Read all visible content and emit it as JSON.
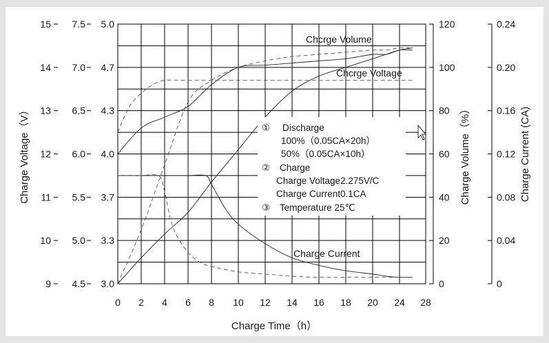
{
  "chart_data": {
    "type": "line",
    "xlabel": "Charge Time（h）",
    "x_ticks": [
      "0",
      "2",
      "4",
      "6",
      "8",
      "10",
      "12",
      "14",
      "16",
      "18",
      "20",
      "24",
      "28"
    ],
    "x_range_hours": [
      0,
      28
    ],
    "grid": true,
    "left_axes": [
      {
        "title": "Charge Voltage（V）",
        "ticks": [
          "15",
          "14",
          "13",
          "12",
          "11",
          "10",
          "9"
        ]
      },
      {
        "ticks": [
          "7.5",
          "7.0",
          "6.5",
          "6.0",
          "5.5",
          "5.0",
          "4.5"
        ]
      },
      {
        "ticks": [
          "5.0",
          "4.7",
          "4.3",
          "4.0",
          "3.7",
          "3.3",
          "3.0"
        ]
      }
    ],
    "right_axes": [
      {
        "title": "Charge Volume（%）",
        "ticks": [
          "120",
          "100",
          "80",
          "60",
          "40",
          "20",
          "0"
        ]
      },
      {
        "title": "Charge Current (CA)",
        "ticks": [
          "0.24",
          "0.20",
          "0.16",
          "0.12",
          "0.08",
          "0.04",
          "0"
        ]
      }
    ],
    "curve_labels": {
      "volume": "Chcrge Volume",
      "voltage": "Chcrge Voltage",
      "current": "Charge Current"
    },
    "legend": [
      {
        "marker": "①",
        "text": "Discharge"
      },
      {
        "marker": "",
        "text": "100%（0.05CA×20h）"
      },
      {
        "marker": "",
        "text": "50%（0.05CA×10h）"
      },
      {
        "marker": "②",
        "text": "Charge"
      },
      {
        "marker": "",
        "text": "Charge Voltage2.275V/C"
      },
      {
        "marker": "",
        "text": "Charge Current0.1CA"
      },
      {
        "marker": "③",
        "text": "Temperature 25℃"
      }
    ],
    "series": [
      {
        "curve": "voltage",
        "discharge": "100%",
        "style": "solid",
        "y_axis": "Charge Voltage (V)",
        "x": [
          0,
          2,
          4,
          6,
          8,
          10,
          12,
          14,
          16,
          18,
          20,
          22,
          24,
          26
        ],
        "y": [
          12.0,
          12.6,
          12.85,
          13.1,
          13.6,
          14.0,
          14.05,
          14.1,
          14.15,
          14.2,
          14.3,
          14.3,
          14.4,
          14.45
        ]
      },
      {
        "curve": "voltage",
        "discharge": "50%",
        "style": "dashed",
        "y_axis": "Charge Voltage (V)",
        "x": [
          0,
          1,
          2,
          3,
          4,
          6,
          8,
          10,
          12,
          14,
          16,
          18,
          20,
          22,
          24,
          26
        ],
        "y": [
          12.5,
          13.1,
          13.4,
          13.6,
          13.7,
          13.7,
          13.7,
          13.7,
          13.7,
          13.7,
          13.7,
          13.7,
          13.7,
          13.7,
          13.7,
          13.7
        ]
      },
      {
        "curve": "volume",
        "discharge": "100%",
        "style": "solid",
        "y_axis": "Charge Volume (%)",
        "x": [
          0,
          2,
          4,
          6,
          8,
          10,
          12,
          14,
          16,
          18,
          20,
          22,
          24,
          26
        ],
        "y": [
          0,
          12,
          23,
          33,
          47,
          62,
          77,
          89,
          96,
          100,
          104,
          106,
          108,
          108
        ]
      },
      {
        "curve": "volume",
        "discharge": "50%",
        "style": "dashed",
        "y_axis": "Charge Volume (%)",
        "x": [
          0,
          2,
          4,
          6,
          8,
          10,
          12,
          14,
          16,
          18,
          20,
          22,
          24,
          26
        ],
        "y": [
          0,
          25,
          55,
          84,
          94,
          100,
          103,
          105,
          106,
          107,
          108,
          108,
          109,
          109
        ]
      },
      {
        "curve": "current",
        "discharge": "100%",
        "style": "solid",
        "y_axis": "Charge Current (CA)",
        "x": [
          0,
          2,
          4,
          6,
          7.5,
          8,
          9,
          10,
          12,
          14,
          16,
          18,
          20,
          22,
          24,
          26
        ],
        "y": [
          0.1,
          0.1,
          0.1,
          0.1,
          0.1,
          0.092,
          0.07,
          0.055,
          0.037,
          0.024,
          0.017,
          0.012,
          0.009,
          0.007,
          0.006,
          0.006
        ]
      },
      {
        "curve": "current",
        "discharge": "50%",
        "style": "dashed",
        "y_axis": "Charge Current (CA)",
        "x": [
          0,
          2,
          3.5,
          4,
          4.5,
          5,
          6,
          7,
          8,
          10,
          12,
          14,
          16,
          18,
          20,
          22,
          24,
          26
        ],
        "y": [
          0.1,
          0.1,
          0.1,
          0.085,
          0.06,
          0.045,
          0.029,
          0.02,
          0.016,
          0.011,
          0.009,
          0.007,
          0.006,
          0.006,
          0.006,
          0.006,
          0.006,
          0.006
        ]
      }
    ]
  }
}
